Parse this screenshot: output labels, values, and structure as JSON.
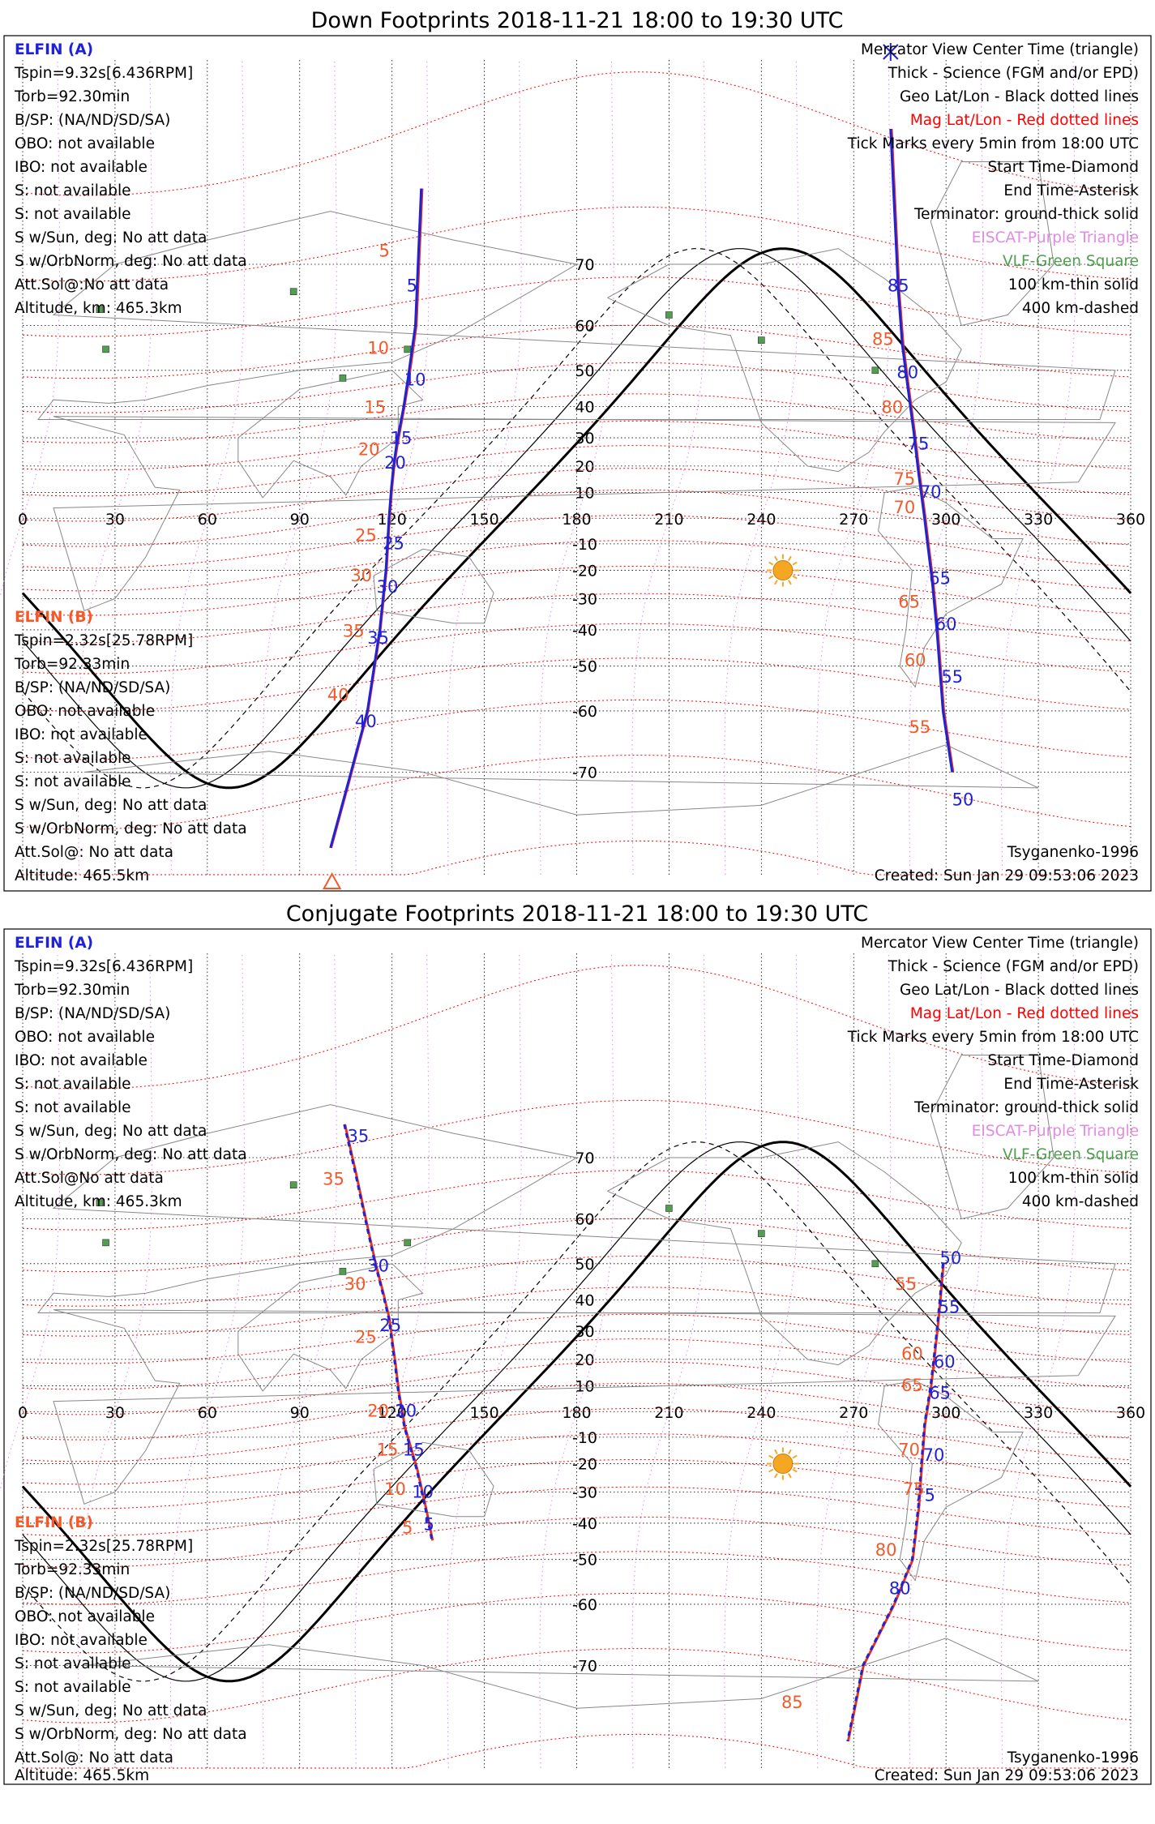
{
  "panels": [
    {
      "title": "Down Footprints 2018-11-21 18:00 to 19:30 UTC",
      "sat_a": {
        "name": "ELFIN (A)",
        "lines": [
          "Tspin=9.32s[6.436RPM]",
          "Torb=92.30min",
          "B/SP: (NA/ND/SD/SA)",
          "OBO: not available",
          "IBO: not available",
          "S: not available",
          "S: not available",
          "S w/Sun, deg: No att data",
          "S w/OrbNorm, deg: No att data",
          "Att.Sol@:No att data",
          "Altitude, km: 465.3km"
        ]
      },
      "sat_b": {
        "name": "ELFIN (B)",
        "lines": [
          "Tspin=2.32s[25.78RPM]",
          "Torb=92.33min",
          "B/SP: (NA/ND/SD/SA)",
          "OBO: not available",
          "IBO: not available",
          "S: not available",
          "S: not available",
          "S w/Sun, deg: No att data",
          "S w/OrbNorm, deg: No att data",
          "Att.Sol@: No att data",
          "Altitude: 465.5km"
        ]
      },
      "legend": [
        "Mercator View Center Time (triangle)",
        "Thick - Science (FGM and/or EPD)",
        "Geo Lat/Lon - Black dotted lines",
        "Mag Lat/Lon - Red dotted lines",
        "Tick Marks every 5min from 18:00 UTC",
        "Start Time-Diamond",
        "End Time-Asterisk",
        "Terminator: ground-thick solid",
        "EISCAT-Purple Triangle",
        "VLF-Green Square",
        "100 km-thin solid",
        "400 km-dashed"
      ],
      "footer_model": "Tsyganenko-1996",
      "footer_created": "Created: Sun Jan 29 09:53:06 2023",
      "track_a": {
        "points": [
          [
            129.5,
            78
          ],
          [
            127.6,
            60
          ],
          [
            125.2,
            48
          ],
          [
            123.8,
            40
          ],
          [
            121.5,
            28
          ],
          [
            120.5,
            20
          ],
          [
            119.8,
            12
          ],
          [
            119.0,
            0
          ],
          [
            118.0,
            -20
          ],
          [
            116.0,
            -40
          ],
          [
            112.0,
            -60
          ],
          [
            106.0,
            -71
          ],
          [
            100.0,
            -78
          ]
        ],
        "ticks": [
          {
            "label": "5",
            "lon": 126.5,
            "lat": 66
          },
          {
            "label": "10",
            "lon": 127.5,
            "lat": 46
          },
          {
            "label": "15",
            "lon": 123.0,
            "lat": 28
          },
          {
            "label": "20",
            "lon": 121.0,
            "lat": 19
          },
          {
            "label": "25",
            "lon": 120.5,
            "lat": -12
          },
          {
            "label": "30",
            "lon": 118.5,
            "lat": -28
          },
          {
            "label": "35",
            "lon": 115.5,
            "lat": -44
          },
          {
            "label": "40",
            "lon": 111.5,
            "lat": -63
          }
        ]
      },
      "track_b": {
        "points": [
          [
            129.8,
            78
          ],
          [
            127.9,
            60
          ],
          [
            125.5,
            48
          ],
          [
            124.0,
            40
          ],
          [
            121.8,
            28
          ],
          [
            120.7,
            20
          ],
          [
            120.0,
            12
          ],
          [
            119.2,
            0
          ],
          [
            118.2,
            -20
          ],
          [
            116.2,
            -40
          ],
          [
            112.2,
            -60
          ],
          [
            106.2,
            -71
          ],
          [
            100.2,
            -78
          ]
        ],
        "ticks": [
          {
            "label": "5",
            "lon": 117.5,
            "lat": 71
          },
          {
            "label": "10",
            "lon": 115.5,
            "lat": 54
          },
          {
            "label": "15",
            "lon": 114.5,
            "lat": 38
          },
          {
            "label": "20",
            "lon": 112.5,
            "lat": 24
          },
          {
            "label": "25",
            "lon": 111.5,
            "lat": -9
          },
          {
            "label": "30",
            "lon": 110.0,
            "lat": -24
          },
          {
            "label": "35",
            "lon": 107.5,
            "lat": -42
          },
          {
            "label": "40",
            "lon": 102.5,
            "lat": -58
          }
        ]
      },
      "track_a2": {
        "points": [
          [
            282,
            82
          ],
          [
            284.5,
            66
          ],
          [
            285.8,
            56
          ],
          [
            287.5,
            46
          ],
          [
            289.5,
            32
          ],
          [
            291,
            18
          ],
          [
            293,
            0
          ],
          [
            294,
            -10
          ],
          [
            295.5,
            -24
          ],
          [
            297,
            -40
          ],
          [
            299,
            -60
          ],
          [
            302,
            -70
          ]
        ],
        "ticks": [
          {
            "label": "85",
            "lon": 284.5,
            "lat": 66
          },
          {
            "label": "80",
            "lon": 287.5,
            "lat": 48
          },
          {
            "label": "75",
            "lon": 291.0,
            "lat": 26
          },
          {
            "label": "70",
            "lon": 295.0,
            "lat": 8
          },
          {
            "label": "65",
            "lon": 298.0,
            "lat": -25
          },
          {
            "label": "60",
            "lon": 300.0,
            "lat": -40
          },
          {
            "label": "55",
            "lon": 302.0,
            "lat": -54
          },
          {
            "label": "50",
            "lon": 305.5,
            "lat": -74
          }
        ]
      },
      "track_b2": {
        "points": [
          [
            282.3,
            82
          ],
          [
            284.8,
            66
          ],
          [
            286.1,
            56
          ],
          [
            287.8,
            46
          ],
          [
            289.8,
            32
          ],
          [
            291.3,
            18
          ],
          [
            293.3,
            0
          ],
          [
            294.3,
            -10
          ],
          [
            295.8,
            -24
          ],
          [
            297.3,
            -40
          ],
          [
            299.3,
            -60
          ],
          [
            302.3,
            -70
          ]
        ],
        "ticks": [
          {
            "label": "85",
            "lon": 279.5,
            "lat": 56
          },
          {
            "label": "80",
            "lon": 282.5,
            "lat": 38
          },
          {
            "label": "75",
            "lon": 286.5,
            "lat": 13
          },
          {
            "label": "70",
            "lon": 286.5,
            "lat": 2
          },
          {
            "label": "65",
            "lon": 288.0,
            "lat": -33
          },
          {
            "label": "60",
            "lon": 290.0,
            "lat": -50
          },
          {
            "label": "55",
            "lon": 291.5,
            "lat": -64
          }
        ]
      }
    },
    {
      "title": "Conjugate Footprints 2018-11-21 18:00 to 19:30 UTC",
      "sat_a": {
        "name": "ELFIN (A)",
        "lines": [
          "Tspin=9.32s[6.436RPM]",
          "Torb=92.30min",
          "B/SP: (NA/ND/SD/SA)",
          "OBO: not available",
          "IBO: not available",
          "S: not available",
          "S: not available",
          "S w/Sun, deg: No att data",
          "S w/OrbNorm, deg: No att data",
          "Att.Sol@No att data",
          "Altitude, km: 465.3km"
        ]
      },
      "sat_b": {
        "name": "ELFIN (B)",
        "lines": [
          "Tspin=2.32s[25.78RPM]",
          "Torb=92.33min",
          "B/SP: (NA/ND/SD/SA)",
          "OBO: not available",
          "IBO: not available",
          "S: not available",
          "S: not available",
          "S w/Sun, deg: No att data",
          "S w/OrbNorm, deg: No att data",
          "Att.Sol@: No att data",
          "Altitude: 465.5km"
        ]
      },
      "legend": [
        "Mercator View Center Time (triangle)",
        "Thick - Science (FGM and/or EPD)",
        "Geo Lat/Lon - Black dotted lines",
        "Mag Lat/Lon - Red dotted lines",
        "Tick Marks every 5min from 18:00 UTC",
        "Start Time-Diamond",
        "End Time-Asterisk",
        "Terminator: ground-thick solid",
        "EISCAT-Purple Triangle",
        "VLF-Green Square",
        "100 km-thin solid",
        "400 km-dashed"
      ],
      "footer_model": "Tsyganenko-1996",
      "footer_created": "Created: Sun Jan 29 09:53:06 2023",
      "track_a": {
        "points": [
          [
            104.5,
            74
          ],
          [
            108,
            68
          ],
          [
            112,
            58
          ],
          [
            114.5,
            50
          ],
          [
            117,
            42
          ],
          [
            119,
            34
          ],
          [
            120,
            26
          ],
          [
            121,
            18
          ],
          [
            122,
            8
          ],
          [
            124,
            -6
          ],
          [
            128,
            -22
          ],
          [
            131,
            -36
          ],
          [
            133,
            -45
          ]
        ],
        "ticks": [
          {
            "label": "35",
            "lon": 109.0,
            "lat": 72
          },
          {
            "label": "30",
            "lon": 115.5,
            "lat": 48
          },
          {
            "label": "25",
            "lon": 119.5,
            "lat": 30
          },
          {
            "label": "20",
            "lon": 124.5,
            "lat": -2
          },
          {
            "label": "15",
            "lon": 127.0,
            "lat": -17
          },
          {
            "label": "10",
            "lon": 130.0,
            "lat": -32
          },
          {
            "label": "5",
            "lon": 132.0,
            "lat": -42
          }
        ]
      },
      "track_b": {
        "points": [
          [
            104.7,
            74
          ],
          [
            108.2,
            68
          ],
          [
            112.2,
            58
          ],
          [
            114.7,
            50
          ],
          [
            117.2,
            42
          ],
          [
            119.2,
            34
          ],
          [
            120.2,
            26
          ],
          [
            121.2,
            18
          ],
          [
            122.2,
            8
          ],
          [
            124.2,
            -6
          ],
          [
            128.2,
            -22
          ],
          [
            131.2,
            -36
          ],
          [
            133.2,
            -45
          ]
        ],
        "ticks": [
          {
            "label": "35",
            "lon": 101.0,
            "lat": 66
          },
          {
            "label": "30",
            "lon": 108.0,
            "lat": 43
          },
          {
            "label": "25",
            "lon": 111.5,
            "lat": 26
          },
          {
            "label": "20",
            "lon": 115.5,
            "lat": -2
          },
          {
            "label": "15",
            "lon": 118.5,
            "lat": -17
          },
          {
            "label": "10",
            "lon": 121.0,
            "lat": -31
          },
          {
            "label": "5",
            "lon": 125.0,
            "lat": -43
          }
        ]
      },
      "track_a2": {
        "points": [
          [
            299,
            50
          ],
          [
            298,
            40
          ],
          [
            297,
            30
          ],
          [
            296,
            20
          ],
          [
            295,
            10
          ],
          [
            293,
            -5
          ],
          [
            292,
            -20
          ],
          [
            291,
            -35
          ],
          [
            289,
            -50
          ],
          [
            283,
            -60
          ],
          [
            273,
            -70
          ],
          [
            268,
            -78
          ]
        ],
        "ticks": [
          {
            "label": "50",
            "lon": 301.5,
            "lat": 50
          },
          {
            "label": "55",
            "lon": 301.0,
            "lat": 36
          },
          {
            "label": "60",
            "lon": 299.5,
            "lat": 17
          },
          {
            "label": "65",
            "lon": 298.0,
            "lat": 5
          },
          {
            "label": "70",
            "lon": 296.0,
            "lat": -19
          },
          {
            "label": "75",
            "lon": 293.0,
            "lat": -33
          },
          {
            "label": "80",
            "lon": 285.0,
            "lat": -58
          }
        ]
      },
      "track_b2": {
        "points": [
          [
            299.2,
            50
          ],
          [
            298.2,
            40
          ],
          [
            297.2,
            30
          ],
          [
            296.2,
            20
          ],
          [
            295.2,
            10
          ],
          [
            293.2,
            -5
          ],
          [
            292.2,
            -20
          ],
          [
            291.2,
            -35
          ],
          [
            289.2,
            -50
          ],
          [
            283.2,
            -60
          ],
          [
            273.2,
            -70
          ],
          [
            268.2,
            -78
          ]
        ],
        "ticks": [
          {
            "label": "55",
            "lon": 287.0,
            "lat": 43
          },
          {
            "label": "60",
            "lon": 289.0,
            "lat": 20
          },
          {
            "label": "65",
            "lon": 289.0,
            "lat": 8
          },
          {
            "label": "70",
            "lon": 288.0,
            "lat": -17
          },
          {
            "label": "75",
            "lon": 289.5,
            "lat": -31
          },
          {
            "label": "80",
            "lon": 280.5,
            "lat": -49
          },
          {
            "label": "85",
            "lon": 250.0,
            "lat": -75
          }
        ]
      }
    }
  ],
  "lon_ticks": [
    "0",
    "30",
    "60",
    "90",
    "120",
    "150",
    "180",
    "210",
    "240",
    "270",
    "300",
    "330",
    "360"
  ],
  "lat_ticks": [
    "70",
    "60",
    "50",
    "40",
    "30",
    "20",
    "10",
    "-10",
    "-20",
    "-30",
    "-40",
    "-50",
    "-60",
    "-70"
  ],
  "geo": {
    "lon_values": [
      0,
      30,
      60,
      90,
      120,
      150,
      180,
      210,
      240,
      270,
      300,
      330,
      360
    ],
    "lat_values": [
      70,
      60,
      50,
      40,
      30,
      20,
      10,
      -10,
      -20,
      -30,
      -40,
      -50,
      -60,
      -70
    ],
    "lat_min": -80,
    "lat_max": 85,
    "sun": {
      "lon": 247,
      "lat": -20
    },
    "terminator": {
      "amp": 72,
      "center_lon": 247,
      "shift": 0
    },
    "vlf_sites": [
      [
        88,
        66
      ],
      [
        25,
        63
      ],
      [
        27,
        55
      ],
      [
        125,
        55
      ],
      [
        104,
        48
      ],
      [
        210,
        62
      ],
      [
        240,
        57
      ],
      [
        277,
        50
      ]
    ]
  },
  "colors": {
    "track_blue": "#1f22d8",
    "track_red": "#e8351a",
    "tick_orange": "#f4592a",
    "mag_red": "#ff0000",
    "geo_black": "#000000",
    "vlf_green": "#4f9f4f",
    "sun": "#f5a623",
    "eiscat_purple": "#e28be2"
  }
}
